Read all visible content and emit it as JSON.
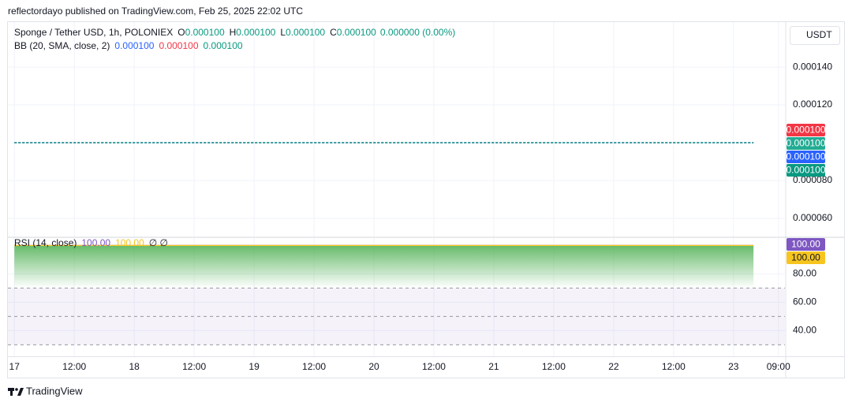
{
  "header": "reflectordayo published on TradingView.com, Feb 25, 2025 22:02 UTC",
  "footer": "TradingView",
  "currency": "USDT",
  "chart_data": [
    {
      "type": "line",
      "title": "Sponge / Tether USD, 1h, POLONIEX",
      "ohlc": {
        "labels": [
          "O",
          "H",
          "L",
          "C"
        ],
        "values": [
          0.0001,
          0.0001,
          0.0001,
          0.0001
        ],
        "value_labels": [
          "0.000100",
          "0.000100",
          "0.000100",
          "0.000100"
        ],
        "color": "#089981"
      },
      "change_label": "0.000000 (0.00%)",
      "indicator": "BB (20, SMA, close, 2)",
      "xlim": [
        -1.3,
        154.3
      ],
      "ylim": [
        5.04e-05,
        0.0001638
      ],
      "yticks": [
        {
          "value": 6e-05,
          "label": "0.000060"
        },
        {
          "value": 8e-05,
          "label": "0.000080"
        },
        {
          "value": 0.00012,
          "label": "0.000120"
        },
        {
          "value": 0.00014,
          "label": "0.000140"
        }
      ],
      "grid": true,
      "series": [
        {
          "color": "#f23645",
          "x": [
            0,
            148
          ],
          "values": [
            0.0001,
            0.0001
          ],
          "value_labels": [
            "0.000100",
            "0.000100"
          ]
        },
        {
          "color": "#22ab94",
          "x": [
            0,
            148
          ],
          "values": [
            0.0001,
            0.0001
          ],
          "value_labels": [
            "0.000100",
            "0.000100"
          ]
        },
        {
          "color": "#2962ff",
          "x": [
            0,
            148
          ],
          "values": [
            0.0001,
            0.0001
          ],
          "value_labels": [
            "0.000100",
            "0.000100"
          ]
        },
        {
          "color": "#089981",
          "x": [
            0,
            148
          ],
          "values": [
            0.0001,
            0.0001
          ],
          "value_labels": [
            "0.000100",
            "0.000100"
          ]
        }
      ]
    },
    {
      "type": "line",
      "title": "RSI (14, close)",
      "extra": "∅  ∅",
      "xlim": [
        -1.3,
        154.3
      ],
      "ylim": [
        21.9,
        105.2
      ],
      "yticks": [
        {
          "value": 40,
          "label": "40.00"
        },
        {
          "value": 60,
          "label": "60.00"
        },
        {
          "value": 80,
          "label": "80.00"
        }
      ],
      "bands": [
        70,
        50,
        30
      ],
      "band_color": "#7e57c2",
      "fill_color": "#4caf50",
      "grid": true,
      "xticks": [
        {
          "value": 0,
          "label": "17"
        },
        {
          "value": 12,
          "label": "12:00"
        },
        {
          "value": 24,
          "label": "18"
        },
        {
          "value": 36,
          "label": "12:00"
        },
        {
          "value": 48,
          "label": "19"
        },
        {
          "value": 60,
          "label": "12:00"
        },
        {
          "value": 72,
          "label": "20"
        },
        {
          "value": 84,
          "label": "12:00"
        },
        {
          "value": 96,
          "label": "21"
        },
        {
          "value": 108,
          "label": "12:00"
        },
        {
          "value": 120,
          "label": "22"
        },
        {
          "value": 132,
          "label": "12:00"
        },
        {
          "value": 144,
          "label": "23"
        },
        {
          "value": 153,
          "label": "09:00"
        }
      ],
      "series": [
        {
          "color": "#7e57c2",
          "x": [
            0,
            148
          ],
          "values": [
            100,
            100
          ],
          "value_labels": [
            "100.00",
            "100.00"
          ]
        },
        {
          "color": "#f7c51f",
          "x": [
            0,
            148
          ],
          "values": [
            100,
            100
          ],
          "value_labels": [
            "100.00",
            "100.00"
          ]
        }
      ]
    }
  ]
}
